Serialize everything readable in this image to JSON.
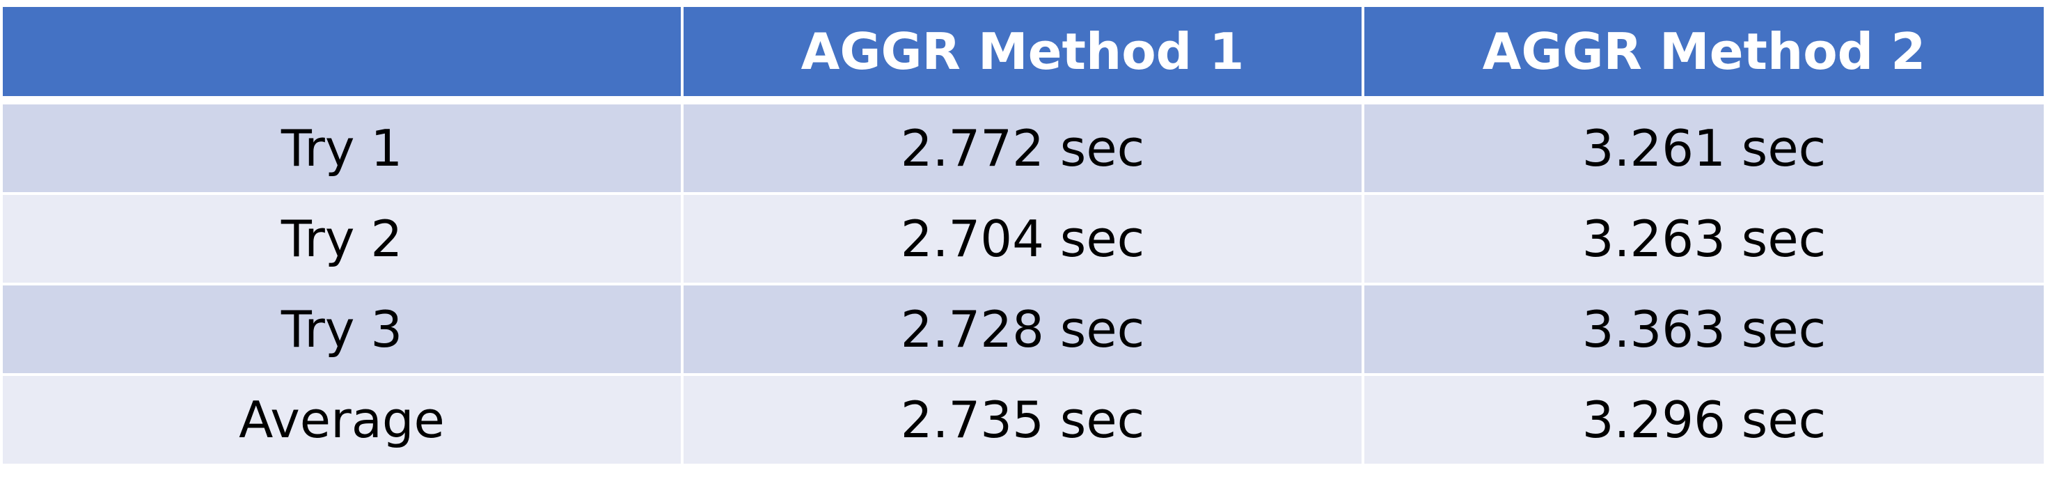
{
  "chart_data": {
    "type": "table",
    "columns": [
      "",
      "AGGR Method 1",
      "AGGR Method 2"
    ],
    "rows": [
      [
        "Try 1",
        "2.772 sec",
        "3.261 sec"
      ],
      [
        "Try 2",
        "2.704 sec",
        "3.263 sec"
      ],
      [
        "Try 3",
        "2.728 sec",
        "3.363 sec"
      ],
      [
        "Average",
        "2.735 sec",
        "3.296 sec"
      ]
    ]
  },
  "colors": {
    "header_bg": "#4472c4",
    "header_text": "#ffffff",
    "row_band_dark": "#cfd5ea",
    "row_band_light": "#e9ebf5",
    "body_text": "#000000"
  }
}
